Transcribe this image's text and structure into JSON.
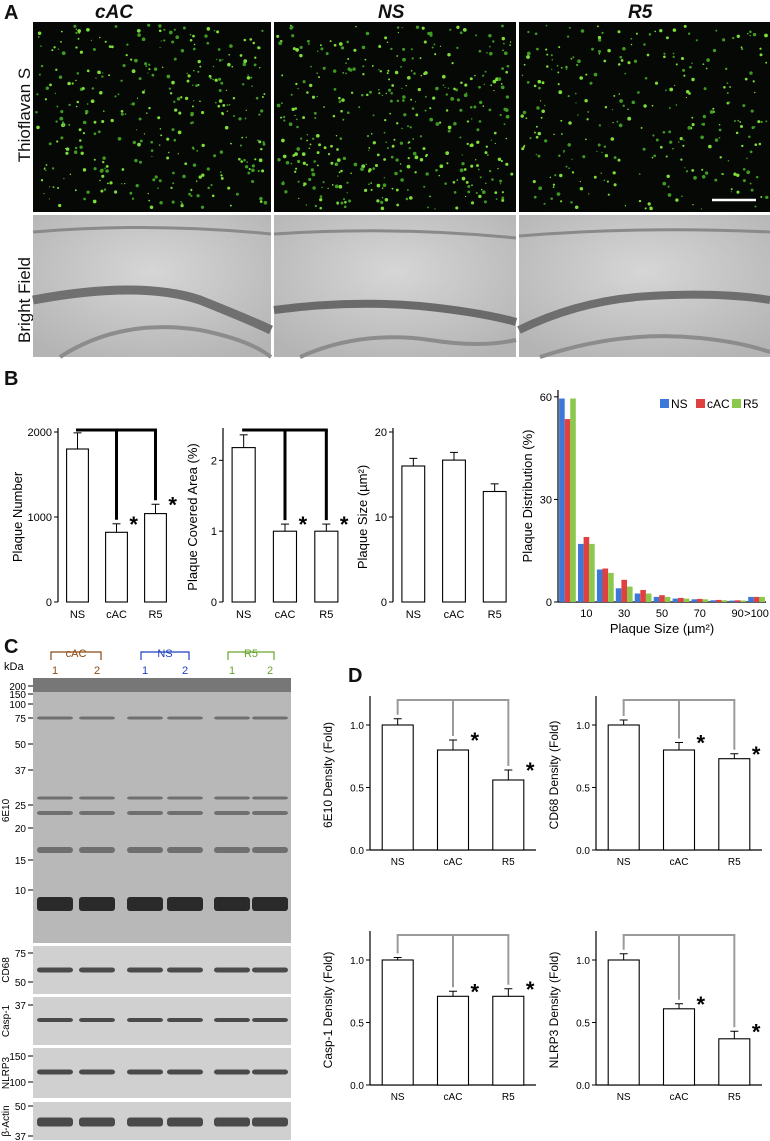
{
  "panelA": {
    "label": "A",
    "columns": [
      "cAC",
      "NS",
      "R5"
    ],
    "rows": [
      "Thioflavan S",
      "Bright Field"
    ]
  },
  "panelB": {
    "label": "B"
  },
  "panelC": {
    "label": "C",
    "unit": "kDa",
    "groups": [
      {
        "name": "cAC",
        "lanes": [
          "1",
          "2"
        ],
        "color": "#8b4a14"
      },
      {
        "name": "NS",
        "lanes": [
          "1",
          "2"
        ],
        "color": "#1f3fbf"
      },
      {
        "name": "R5",
        "lanes": [
          "1",
          "2"
        ],
        "color": "#6aa32c"
      }
    ],
    "blots": [
      {
        "name": "6E10",
        "markers": [
          "200",
          "150",
          "100",
          "75",
          "50",
          "37",
          "25",
          "20",
          "15",
          "10"
        ]
      },
      {
        "name": "CD68",
        "markers": [
          "75",
          "50"
        ]
      },
      {
        "name": "Casp-1",
        "markers": [
          "37"
        ]
      },
      {
        "name": "NLRP3",
        "markers": [
          "150",
          "100"
        ]
      },
      {
        "name": "β-Actin",
        "markers": [
          "50",
          "37"
        ]
      }
    ]
  },
  "panelD": {
    "label": "D"
  },
  "chart_data": [
    {
      "id": "b1",
      "type": "bar",
      "categories": [
        "NS",
        "cAC",
        "R5"
      ],
      "values": [
        1800,
        820,
        1040
      ],
      "errors": [
        190,
        100,
        110
      ],
      "ylabel": "Plaque Number",
      "ylim": [
        0,
        2000
      ],
      "yticks": [
        "0",
        "1000",
        "2000"
      ],
      "significance": [
        "",
        "*",
        "*"
      ]
    },
    {
      "id": "b2",
      "type": "bar",
      "categories": [
        "NS",
        "cAC",
        "R5"
      ],
      "values": [
        2.18,
        1.0,
        1.0
      ],
      "errors": [
        0.18,
        0.1,
        0.1
      ],
      "ylabel": "Plaque Covered Area (%)",
      "ylim": [
        0,
        2.4
      ],
      "yticks": [
        "0",
        "1",
        "2"
      ],
      "significance": [
        "",
        "*",
        "*"
      ]
    },
    {
      "id": "b3",
      "type": "bar",
      "categories": [
        "NS",
        "cAC",
        "R5"
      ],
      "values": [
        16.0,
        16.7,
        13.0
      ],
      "errors": [
        0.9,
        0.9,
        0.9
      ],
      "ylabel": "Plaque Size (µm²)",
      "ylim": [
        0,
        20
      ],
      "yticks": [
        "0",
        "10",
        "20"
      ],
      "significance": [
        "",
        "",
        ""
      ]
    },
    {
      "id": "b4",
      "type": "bar",
      "categories": [
        "",
        "10",
        "",
        "30",
        "",
        "50",
        "",
        "70",
        "",
        "90",
        ">100"
      ],
      "series": [
        {
          "name": "NS",
          "color": "#3c78d8",
          "values": [
            59.5,
            17,
            9.5,
            4,
            2.5,
            1.5,
            1,
            0.8,
            0.5,
            0.4,
            1.5
          ]
        },
        {
          "name": "cAC",
          "color": "#e04040",
          "values": [
            53.5,
            19,
            9.8,
            6.5,
            3.5,
            2,
            1.2,
            0.9,
            0.6,
            0.5,
            1.5
          ]
        },
        {
          "name": "R5",
          "color": "#8cc84b",
          "values": [
            59.5,
            17,
            8.5,
            4.5,
            2.5,
            1.5,
            1,
            0.8,
            0.5,
            0.4,
            1.5
          ]
        }
      ],
      "ylabel": "Plaque Distribution (%)",
      "xlabel": "Plaque Size (µm²)",
      "ylim": [
        0,
        62
      ],
      "yticks": [
        "0",
        "30",
        "60"
      ],
      "legend": "top-right"
    },
    {
      "id": "d1",
      "type": "bar",
      "categories": [
        "NS",
        "cAC",
        "R5"
      ],
      "values": [
        1.0,
        0.8,
        0.56
      ],
      "errors": [
        0.05,
        0.08,
        0.08
      ],
      "ylabel": "6E10 Density (Fold)",
      "ylim": [
        0,
        1.2
      ],
      "yticks": [
        "0.0",
        "0.5",
        "1.0"
      ],
      "significance": [
        "",
        "*",
        "*"
      ]
    },
    {
      "id": "d2",
      "type": "bar",
      "categories": [
        "NS",
        "cAC",
        "R5"
      ],
      "values": [
        1.0,
        0.8,
        0.73
      ],
      "errors": [
        0.04,
        0.06,
        0.04
      ],
      "ylabel": "CD68 Density (Fold)",
      "ylim": [
        0,
        1.2
      ],
      "yticks": [
        "0.0",
        "0.5",
        "1.0"
      ],
      "significance": [
        "",
        "*",
        "*"
      ]
    },
    {
      "id": "d3",
      "type": "bar",
      "categories": [
        "NS",
        "cAC",
        "R5"
      ],
      "values": [
        1.0,
        0.71,
        0.71
      ],
      "errors": [
        0.02,
        0.04,
        0.06
      ],
      "ylabel": "Casp-1 Density (Fold)",
      "ylim": [
        0,
        1.2
      ],
      "yticks": [
        "0.0",
        "0.5",
        "1.0"
      ],
      "significance": [
        "",
        "*",
        "*"
      ]
    },
    {
      "id": "d4",
      "type": "bar",
      "categories": [
        "NS",
        "cAC",
        "R5"
      ],
      "values": [
        1.0,
        0.61,
        0.37
      ],
      "errors": [
        0.05,
        0.04,
        0.06
      ],
      "ylabel": "NLRP3 Density (Fold)",
      "ylim": [
        0,
        1.2
      ],
      "yticks": [
        "0.0",
        "0.5",
        "1.0"
      ],
      "significance": [
        "",
        "*",
        "*"
      ]
    }
  ]
}
